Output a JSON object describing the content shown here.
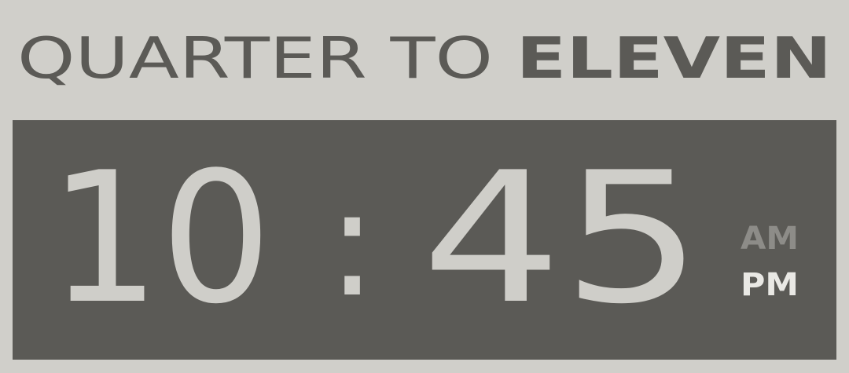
{
  "title": {
    "light_part": "QUARTER TO",
    "bold_part": "ELEVEN"
  },
  "clock": {
    "hours": "10",
    "separator": ":",
    "minutes": "45",
    "am_label": "AM",
    "pm_label": "PM",
    "active_period": "PM"
  },
  "colors": {
    "background": "#d0cfca",
    "panel": "#5b5a56",
    "digits": "#cfcec9",
    "inactive_period": "#8d8c88",
    "active_period": "#e9e8e4",
    "title": "#5b5a56"
  }
}
